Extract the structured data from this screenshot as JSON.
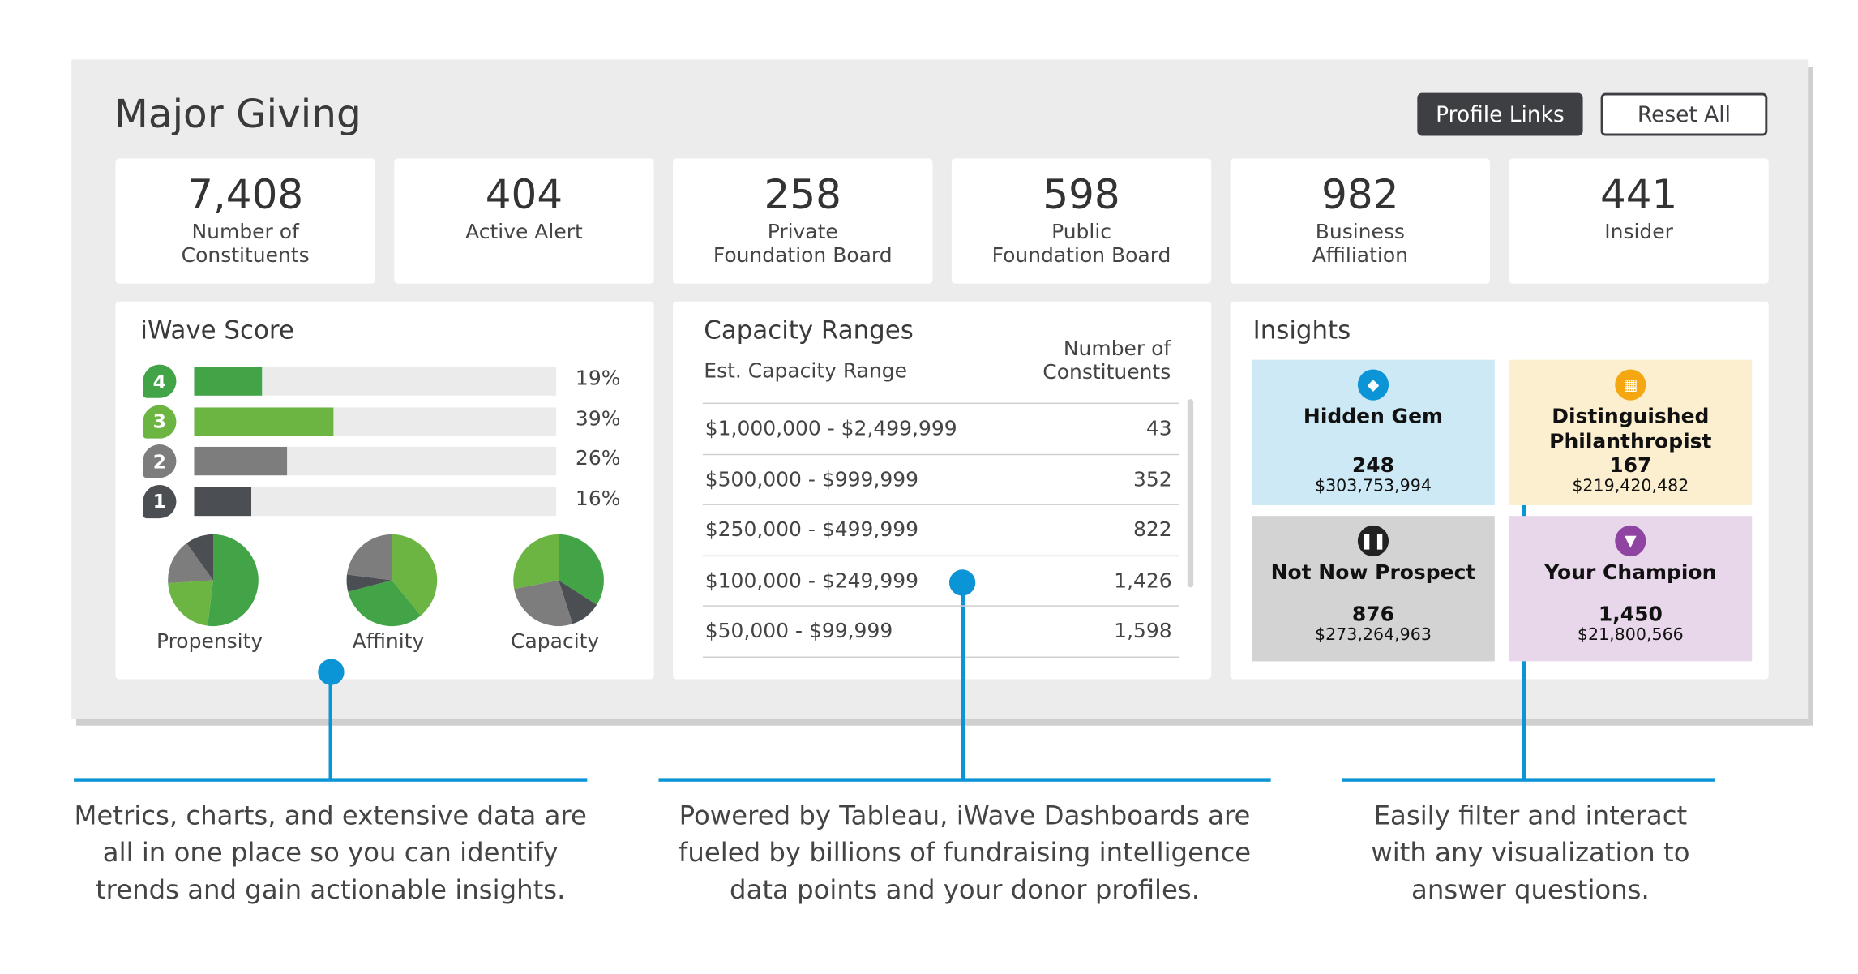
{
  "header": {
    "title": "Major Giving",
    "profile_links": "Profile Links",
    "reset_all": "Reset All"
  },
  "stats": [
    {
      "value": "7,408",
      "label": "Number of\nConstituents"
    },
    {
      "value": "404",
      "label": "Active Alert"
    },
    {
      "value": "258",
      "label": "Private\nFoundation Board"
    },
    {
      "value": "598",
      "label": "Public\nFoundation Board"
    },
    {
      "value": "982",
      "label": "Business\nAffiliation"
    },
    {
      "value": "441",
      "label": "Insider"
    }
  ],
  "iwave": {
    "title": "iWave Score",
    "bars": [
      {
        "score": "4",
        "pct_label": "19%",
        "value": 19,
        "color": "#43a447"
      },
      {
        "score": "3",
        "pct_label": "39%",
        "value": 39,
        "color": "#6cb543"
      },
      {
        "score": "2",
        "pct_label": "26%",
        "value": 26,
        "color": "#7d7d7d"
      },
      {
        "score": "1",
        "pct_label": "16%",
        "value": 16,
        "color": "#4b4e52"
      }
    ],
    "pies": [
      {
        "label": "Propensity",
        "slices": [
          {
            "value": 52,
            "color": "#43a447"
          },
          {
            "value": 22,
            "color": "#6cb543"
          },
          {
            "value": 16,
            "color": "#7d7d7d"
          },
          {
            "value": 10,
            "color": "#4b4e52"
          }
        ]
      },
      {
        "label": "Affinity",
        "slices": [
          {
            "value": 39,
            "color": "#6cb543"
          },
          {
            "value": 32,
            "color": "#43a447"
          },
          {
            "value": 6,
            "color": "#4b4e52"
          },
          {
            "value": 23,
            "color": "#7d7d7d"
          }
        ]
      },
      {
        "label": "Capacity",
        "slices": [
          {
            "value": 34,
            "color": "#43a447"
          },
          {
            "value": 11,
            "color": "#4b4e52"
          },
          {
            "value": 27,
            "color": "#7d7d7d"
          },
          {
            "value": 28,
            "color": "#6cb543"
          }
        ]
      }
    ]
  },
  "capacity": {
    "title": "Capacity Ranges",
    "col1": "Est. Capacity Range",
    "col2": "Number of\nConstituents",
    "rows": [
      {
        "range": "$1,000,000 - $2,499,999",
        "count": "43"
      },
      {
        "range": "$500,000 - $999,999",
        "count": "352"
      },
      {
        "range": "$250,000 - $499,999",
        "count": "822"
      },
      {
        "range": "$100,000 - $249,999",
        "count": "1,426"
      },
      {
        "range": "$50,000 - $99,999",
        "count": "1,598"
      }
    ]
  },
  "insights": {
    "title": "Insights",
    "tiles": [
      {
        "name": "Hidden Gem",
        "count": "248",
        "amount": "$303,753,994",
        "icon": "diamond-icon",
        "bg": "#cde9f5",
        "icon_color": "#0b94d6"
      },
      {
        "name": "Distinguished Philanthropist",
        "count": "167",
        "amount": "$219,420,482",
        "icon": "gift-icon",
        "bg": "#fcefcf",
        "icon_color": "#f5a712"
      },
      {
        "name": "Not Now Prospect",
        "count": "876",
        "amount": "$273,264,963",
        "icon": "pause-icon",
        "bg": "#d3d3d3",
        "icon_color": "#222222"
      },
      {
        "name": "Your Champion",
        "count": "1,450",
        "amount": "$21,800,566",
        "icon": "trophy-icon",
        "bg": "#e8d6ea",
        "icon_color": "#8e44a0"
      }
    ]
  },
  "callouts": [
    "Metrics, charts, and extensive data are\nall in one place so you can identify\ntrends and gain actionable insights.",
    "Powered by Tableau, iWave Dashboards are\nfueled by billions of fundraising intelligence\ndata points and your donor profiles.",
    "Easily filter and interact\nwith any visualization to\nanswer questions."
  ]
}
